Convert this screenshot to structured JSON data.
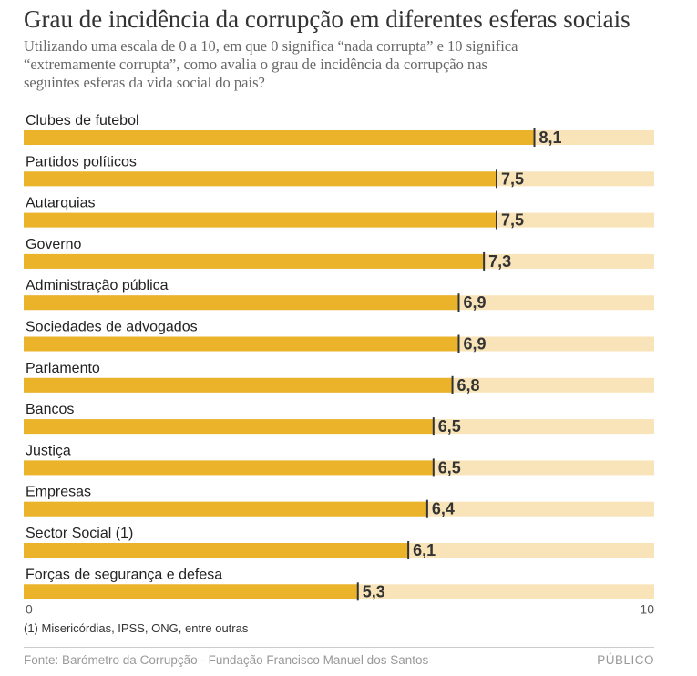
{
  "chart_data": {
    "type": "bar",
    "orientation": "horizontal",
    "title": "Grau de incidência da corrupção em diferentes esferas sociais",
    "subtitle": "Utilizando uma escala de 0 a 10, em que 0 significa “nada corrupta” e 10 significa “extremamente corrupta”, como avalia o grau de incidência da corrupção nas seguintes esferas da vida social do país?",
    "categories": [
      "Clubes de futebol",
      "Partidos políticos",
      "Autarquias",
      "Governo",
      "Administração pública",
      "Sociedades de advogados",
      "Parlamento",
      "Bancos",
      "Justiça",
      "Empresas",
      "Sector Social (1)",
      "Forças de segurança e defesa"
    ],
    "values": [
      8.1,
      7.5,
      7.5,
      7.3,
      6.9,
      6.9,
      6.8,
      6.5,
      6.5,
      6.4,
      6.1,
      5.3
    ],
    "value_labels": [
      "8,1",
      "7,5",
      "7,5",
      "7,3",
      "6,9",
      "6,9",
      "6,8",
      "6,5",
      "6,5",
      "6,4",
      "6,1",
      "5,3"
    ],
    "xlim": [
      0,
      10
    ],
    "tick_labels": [
      "0",
      "10"
    ],
    "xlabel": "",
    "ylabel": "",
    "colors": {
      "bar": "#eab32a",
      "track": "#f8e4b8",
      "marker": "#333333"
    }
  },
  "footnote": "(1) Misericórdias, IPSS, ONG, entre outras",
  "source": "Fonte: Barómetro da Corrupção - Fundação Francisco Manuel dos Santos",
  "brand": "PÚBLICO"
}
